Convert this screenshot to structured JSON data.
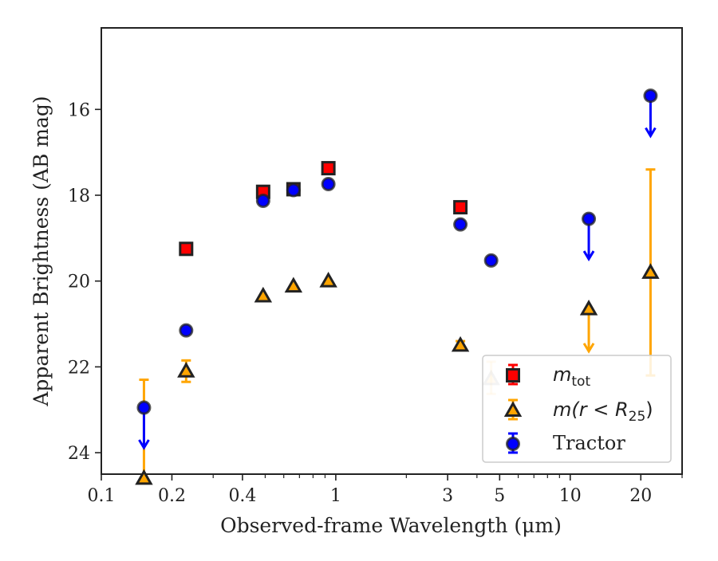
{
  "chart_data": {
    "type": "scatter",
    "title": "",
    "xlabel": "Observed-frame Wavelength (μm)",
    "ylabel": "Apparent Brightness (AB mag)",
    "xscale": "log",
    "xlim": [
      0.1,
      30
    ],
    "ylim": [
      24.5,
      14.1
    ],
    "y_inverted": true,
    "x_ticks": [
      0.1,
      0.2,
      0.4,
      1,
      3,
      5,
      10,
      20
    ],
    "x_tick_labels": [
      "0.1",
      "0.2",
      "0.4",
      "1",
      "3",
      "5",
      "10",
      "20"
    ],
    "y_ticks": [
      16,
      18,
      20,
      22,
      24
    ],
    "y_tick_labels": [
      "16",
      "18",
      "20",
      "22",
      "24"
    ],
    "legend_position": "lower-right",
    "series": [
      {
        "key": "mtot",
        "legend_main": "m",
        "legend_sub": "tot",
        "marker": "square",
        "face_color": "#ff0000",
        "edge_color": "#222222",
        "error_color": "#ff0000",
        "points": [
          {
            "x": 0.23,
            "y": 19.25
          },
          {
            "x": 0.49,
            "y": 17.92
          },
          {
            "x": 0.66,
            "y": 17.86
          },
          {
            "x": 0.93,
            "y": 17.37
          },
          {
            "x": 3.4,
            "y": 18.28
          }
        ]
      },
      {
        "key": "mr25",
        "legend_text": "m(r < R",
        "legend_sub": "25",
        "legend_close": ")",
        "marker": "triangle",
        "face_color": "#ffa500",
        "edge_color": "#222222",
        "error_color": "#ffa500",
        "points": [
          {
            "x": 0.152,
            "y": 24.6,
            "yerr": [
              2.3,
              0
            ]
          },
          {
            "x": 0.23,
            "y": 22.1,
            "yerr": [
              0.25,
              0.25
            ]
          },
          {
            "x": 0.49,
            "y": 20.35
          },
          {
            "x": 0.66,
            "y": 20.12
          },
          {
            "x": 0.93,
            "y": 20.0
          },
          {
            "x": 3.4,
            "y": 21.5,
            "yerr": [
              0.1,
              0.1
            ]
          },
          {
            "x": 4.6,
            "y": 22.28,
            "yerr": [
              0.4,
              0.35
            ],
            "alpha": 0.35
          },
          {
            "x": 12.0,
            "y": 20.65,
            "upper_limit": true,
            "arrow_to": 21.6
          },
          {
            "x": 22.0,
            "y": 19.8,
            "yerr": [
              2.4,
              2.4
            ]
          }
        ]
      },
      {
        "key": "tractor",
        "legend_label": "Tractor",
        "marker": "circle",
        "face_color": "#0000ff",
        "edge_color": "#222222",
        "error_color": "#0000ff",
        "points": [
          {
            "x": 0.152,
            "y": 22.95,
            "upper_limit": true,
            "arrow_to": 23.85
          },
          {
            "x": 0.23,
            "y": 21.15
          },
          {
            "x": 0.49,
            "y": 18.13
          },
          {
            "x": 0.66,
            "y": 17.88
          },
          {
            "x": 0.93,
            "y": 17.74
          },
          {
            "x": 3.4,
            "y": 18.68
          },
          {
            "x": 4.6,
            "y": 19.52
          },
          {
            "x": 12.0,
            "y": 18.55,
            "upper_limit": true,
            "arrow_to": 19.45
          },
          {
            "x": 22.0,
            "y": 15.68,
            "upper_limit": true,
            "arrow_to": 16.58
          }
        ]
      }
    ]
  }
}
